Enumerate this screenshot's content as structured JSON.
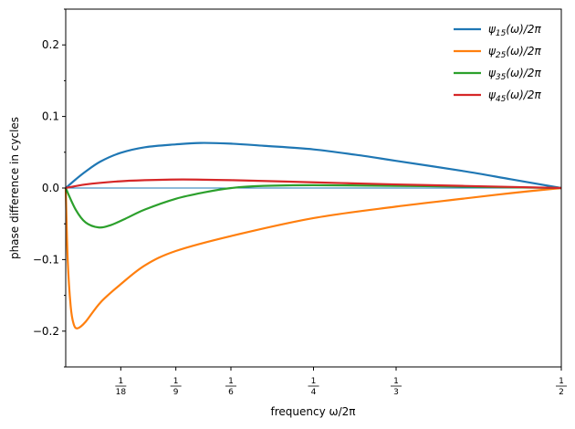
{
  "chart_data": {
    "type": "line",
    "xlabel": "frequency ω/2π",
    "ylabel": "phase difference in cycles",
    "xlim": [
      0,
      0.5
    ],
    "ylim": [
      -0.25,
      0.25
    ],
    "grid": false,
    "legend_placement": "top-right",
    "x_ticks": [
      {
        "value": 0.0555556,
        "label": "1/18"
      },
      {
        "value": 0.1111111,
        "label": "1/9"
      },
      {
        "value": 0.1666667,
        "label": "1/6"
      },
      {
        "value": 0.25,
        "label": "1/4"
      },
      {
        "value": 0.3333333,
        "label": "1/3"
      },
      {
        "value": 0.5,
        "label": "1/2"
      }
    ],
    "y_ticks": [
      {
        "value": -0.2,
        "label": "−0.2"
      },
      {
        "value": -0.1,
        "label": "−0.1"
      },
      {
        "value": 0.0,
        "label": "0.0"
      },
      {
        "value": 0.1,
        "label": "0.1"
      },
      {
        "value": 0.2,
        "label": "0.2"
      }
    ],
    "y_minor_ticks": [
      -0.25,
      -0.15,
      -0.05,
      0.05,
      0.15,
      0.25
    ],
    "zero_line_color": "#1f77b4",
    "series": [
      {
        "name": "ψ15(ω)/2π",
        "color": "#1f77b4",
        "points": [
          [
            0,
            0
          ],
          [
            0.01,
            0.012
          ],
          [
            0.02,
            0.023
          ],
          [
            0.035,
            0.037
          ],
          [
            0.055,
            0.049
          ],
          [
            0.08,
            0.057
          ],
          [
            0.111,
            0.061
          ],
          [
            0.136,
            0.063
          ],
          [
            0.167,
            0.062
          ],
          [
            0.2,
            0.059
          ],
          [
            0.25,
            0.054
          ],
          [
            0.3,
            0.045
          ],
          [
            0.333,
            0.038
          ],
          [
            0.4,
            0.024
          ],
          [
            0.45,
            0.012
          ],
          [
            0.5,
            0
          ]
        ]
      },
      {
        "name": "ψ25(ω)/2π",
        "color": "#ff7f0e",
        "points": [
          [
            0,
            0
          ],
          [
            0.002,
            -0.1
          ],
          [
            0.005,
            -0.165
          ],
          [
            0.008,
            -0.19
          ],
          [
            0.012,
            -0.196
          ],
          [
            0.02,
            -0.187
          ],
          [
            0.035,
            -0.16
          ],
          [
            0.055,
            -0.135
          ],
          [
            0.08,
            -0.108
          ],
          [
            0.111,
            -0.088
          ],
          [
            0.167,
            -0.067
          ],
          [
            0.25,
            -0.042
          ],
          [
            0.333,
            -0.026
          ],
          [
            0.4,
            -0.015
          ],
          [
            0.45,
            -0.007
          ],
          [
            0.5,
            0
          ]
        ]
      },
      {
        "name": "ψ35(ω)/2π",
        "color": "#2ca02c",
        "points": [
          [
            0,
            0
          ],
          [
            0.01,
            -0.03
          ],
          [
            0.02,
            -0.048
          ],
          [
            0.033,
            -0.055
          ],
          [
            0.045,
            -0.052
          ],
          [
            0.06,
            -0.043
          ],
          [
            0.08,
            -0.03
          ],
          [
            0.111,
            -0.015
          ],
          [
            0.14,
            -0.006
          ],
          [
            0.167,
            0
          ],
          [
            0.2,
            0.003
          ],
          [
            0.25,
            0.004
          ],
          [
            0.333,
            0.003
          ],
          [
            0.4,
            0.002
          ],
          [
            0.5,
            0
          ]
        ]
      },
      {
        "name": "ψ45(ω)/2π",
        "color": "#d62728",
        "points": [
          [
            0,
            0
          ],
          [
            0.02,
            0.005
          ],
          [
            0.05,
            0.009
          ],
          [
            0.08,
            0.011
          ],
          [
            0.118,
            0.012
          ],
          [
            0.167,
            0.011
          ],
          [
            0.25,
            0.008
          ],
          [
            0.333,
            0.005
          ],
          [
            0.4,
            0.003
          ],
          [
            0.5,
            0
          ]
        ]
      }
    ]
  }
}
